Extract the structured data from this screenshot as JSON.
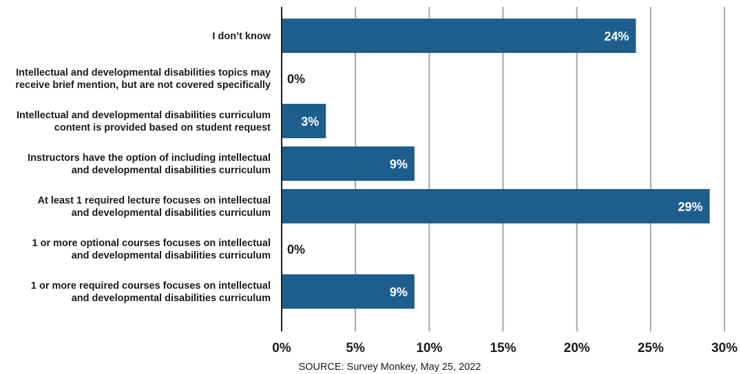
{
  "chart_data": {
    "type": "bar",
    "orientation": "horizontal",
    "categories": [
      [
        "I don’t know"
      ],
      [
        "Intellectual and developmental disabilities topics may",
        "receive brief mention, but are not covered specifically"
      ],
      [
        "Intellectual and developmental disabilities curriculum",
        "content is provided based on student request"
      ],
      [
        "Instructors have the option of including intellectual",
        "and developmental disabilities curriculum"
      ],
      [
        "At least 1 required lecture focuses on intellectual",
        "and developmental disabilities curriculum"
      ],
      [
        "1 or more optional courses focuses on intellectual",
        "and developmental disabilities curriculum"
      ],
      [
        "1 or more required courses focuses on intellectual",
        "and developmental disabilities curriculum"
      ]
    ],
    "values": [
      24,
      0,
      3,
      9,
      29,
      0,
      9
    ],
    "data_labels": [
      "24%",
      "0%",
      "3%",
      "9%",
      "29%",
      "0%",
      "9%"
    ],
    "xlim": [
      0,
      30
    ],
    "xticks": [
      0,
      5,
      10,
      15,
      20,
      25,
      30
    ],
    "xtick_labels": [
      "0%",
      "5%",
      "10%",
      "15%",
      "20%",
      "25%",
      "30%"
    ],
    "grid": true,
    "title": "",
    "xlabel": "",
    "ylabel": "",
    "colors": {
      "bar": "#1e5e8f",
      "grid": "#a6a6a6",
      "axis": "#1a1a1a",
      "label_inside": "#ffffff",
      "label_outside": "#1a1a1a"
    }
  },
  "source": "SOURCE: Survey Monkey, May 25, 2022"
}
